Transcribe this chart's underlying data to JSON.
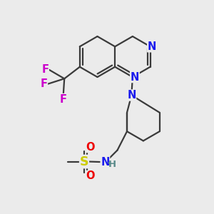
{
  "bg_color": "#ebebeb",
  "bond_color": "#3a3a3a",
  "bond_width": 1.6,
  "atom_colors": {
    "N": "#1a1aee",
    "F": "#cc00cc",
    "S": "#cccc00",
    "O": "#ee0000",
    "H": "#5a8a8a",
    "C": "#3a3a3a"
  },
  "font_size_atom": 10.5
}
